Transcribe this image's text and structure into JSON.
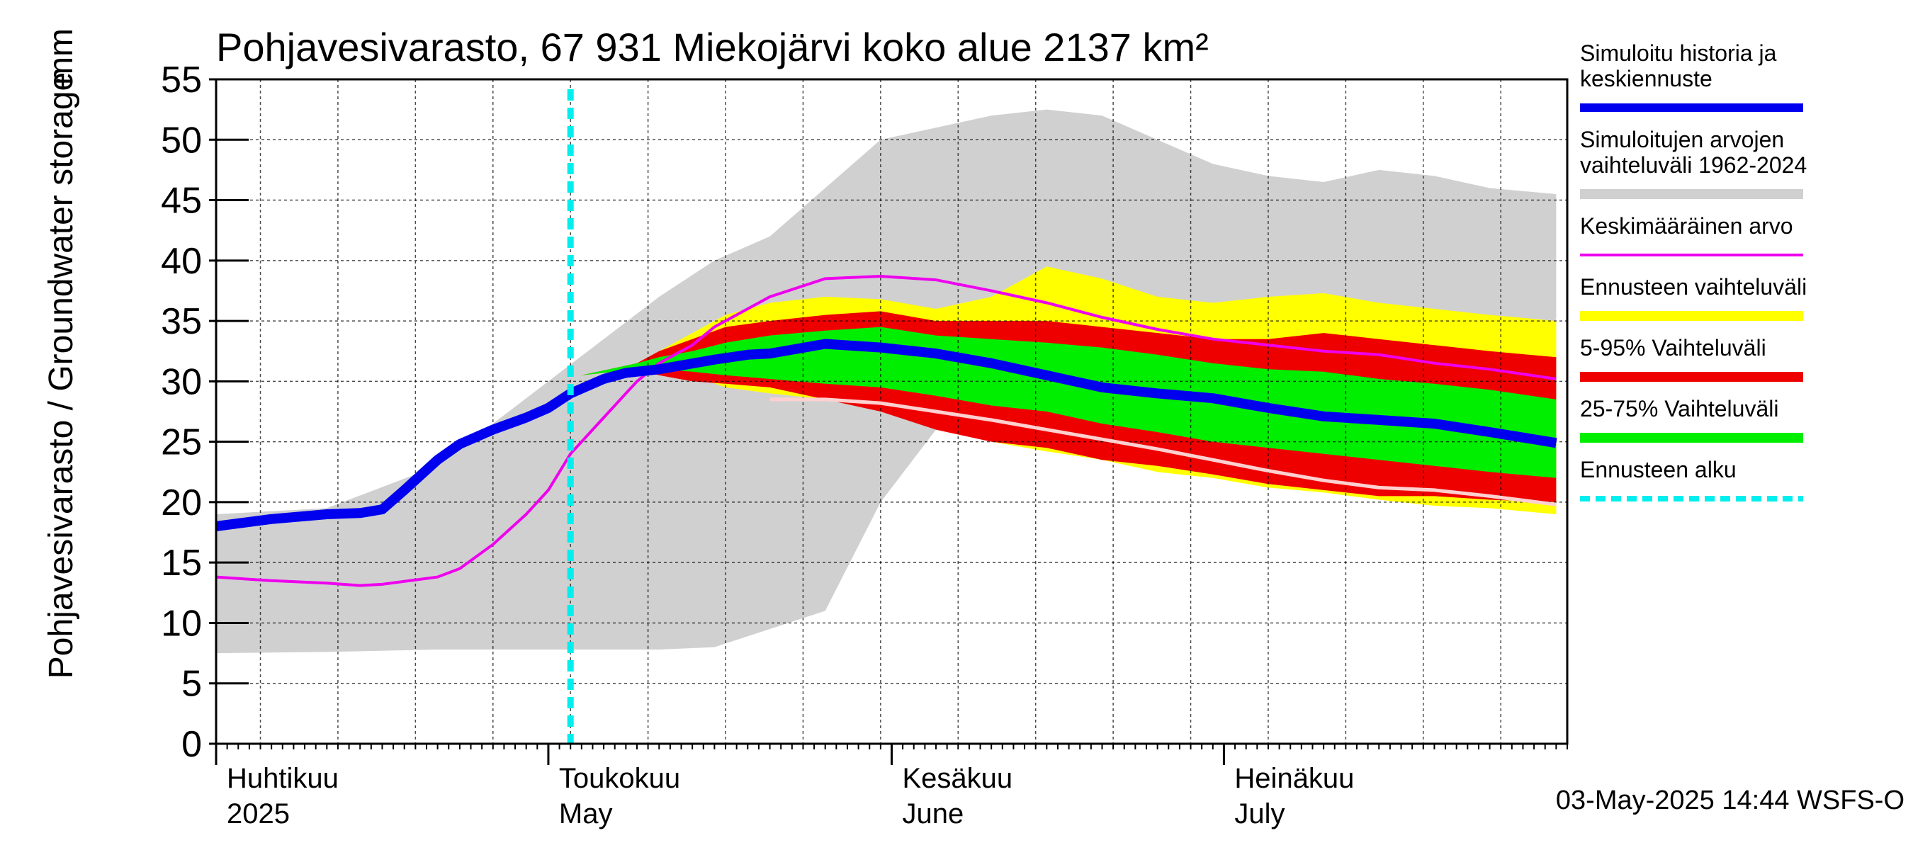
{
  "chart_data": {
    "type": "area",
    "title": "Pohjavesivarasto, 67 931 Miekojärvi koko alue 2137 km²",
    "ylabel": "Pohjavesivarasto / Groundwater storage",
    "yunit": "mm",
    "ylim": [
      0,
      55
    ],
    "yticks": [
      0,
      5,
      10,
      15,
      20,
      25,
      30,
      35,
      40,
      45,
      50,
      55
    ],
    "x_start": "2025-04-01",
    "x_end": "2025-07-31",
    "forecast_start": "2025-05-03",
    "month_labels": [
      {
        "fi": "Huhtikuu",
        "en": "2025",
        "date": "2025-04-01"
      },
      {
        "fi": "Toukokuu",
        "en": "May",
        "date": "2025-05-01"
      },
      {
        "fi": "Kesäkuu",
        "en": "June",
        "date": "2025-06-01"
      },
      {
        "fi": "Heinäkuu",
        "en": "July",
        "date": "2025-07-01"
      }
    ],
    "legend": [
      {
        "key": "sim",
        "label": "Simuloitu historia ja keskiennuste",
        "color": "#0000ee"
      },
      {
        "key": "range",
        "label": "Simuloitujen arvojen vaihteluväli 1962-2024",
        "color": "#d0d0d0"
      },
      {
        "key": "mean",
        "label": "Keskimääräinen arvo",
        "color": "#ee00ee"
      },
      {
        "key": "fc_range",
        "label": "Ennusteen vaihteluväli",
        "color": "#ffff00"
      },
      {
        "key": "p5_95",
        "label": "5-95% Vaihteluväli",
        "color": "#ee0000"
      },
      {
        "key": "p25_75",
        "label": "25-75% Vaihteluväli",
        "color": "#00ee00"
      },
      {
        "key": "fc_start",
        "label": "Ennusteen alku",
        "color": "#00eeee"
      }
    ],
    "footer": "03-May-2025 14:44 WSFS-O",
    "series": {
      "hist_range": {
        "days": [
          0,
          10,
          20,
          30,
          40,
          45,
          50,
          55,
          60,
          65,
          70,
          75,
          80,
          85,
          90,
          95,
          100,
          105,
          110,
          115,
          121
        ],
        "min": [
          7.5,
          7.6,
          7.8,
          7.8,
          7.8,
          8.0,
          9.5,
          11,
          20,
          26,
          28,
          28.5,
          28.5,
          27,
          26,
          24.5,
          23,
          22,
          21,
          20,
          19.5
        ],
        "max": [
          19,
          19.5,
          23,
          30,
          37,
          40,
          42,
          46,
          50,
          51,
          52,
          52.5,
          52,
          50,
          48,
          47,
          46.5,
          47.5,
          47,
          46,
          45.5
        ]
      },
      "sim": {
        "days": [
          0,
          5,
          10,
          13,
          15,
          17,
          20,
          22,
          25,
          28,
          30,
          32,
          35,
          37,
          40,
          45,
          48,
          50,
          55,
          60,
          65,
          70,
          75,
          80,
          85,
          90,
          95,
          100,
          105,
          110,
          115,
          121
        ],
        "values": [
          18,
          18.6,
          19,
          19.1,
          19.4,
          21,
          23.5,
          24.8,
          26,
          27,
          27.8,
          29,
          30.2,
          30.7,
          31,
          31.8,
          32.2,
          32.3,
          33.1,
          32.8,
          32.3,
          31.5,
          30.5,
          29.5,
          29,
          28.6,
          27.8,
          27.1,
          26.8,
          26.5,
          25.8,
          24.9
        ]
      },
      "mean": {
        "days": [
          0,
          5,
          10,
          13,
          15,
          20,
          22,
          25,
          28,
          30,
          32,
          35,
          38,
          40,
          43,
          45,
          48,
          50,
          55,
          60,
          65,
          70,
          75,
          80,
          85,
          90,
          95,
          100,
          105,
          110,
          115,
          121
        ],
        "values": [
          13.8,
          13.5,
          13.3,
          13.1,
          13.2,
          13.8,
          14.5,
          16.5,
          19,
          21,
          24,
          27,
          30,
          31.5,
          33,
          34.5,
          36,
          37,
          38.5,
          38.7,
          38.4,
          37.5,
          36.5,
          35.3,
          34.3,
          33.5,
          33,
          32.5,
          32.2,
          31.5,
          31,
          30.2
        ]
      },
      "fc_range": {
        "days": [
          33,
          38,
          40,
          43,
          46,
          50,
          55,
          60,
          65,
          70,
          75,
          80,
          85,
          90,
          95,
          100,
          105,
          110,
          115,
          121
        ],
        "min": [
          30.5,
          31,
          31,
          30.5,
          29.5,
          29,
          28.5,
          27.7,
          26.5,
          25,
          24.2,
          23.5,
          22.5,
          22,
          21.2,
          20.8,
          20.2,
          19.7,
          19.5,
          19
        ],
        "max": [
          30.5,
          31.5,
          32.5,
          34,
          35.5,
          36.5,
          37,
          36.8,
          36,
          37,
          39.5,
          38.5,
          37,
          36.5,
          37,
          37.3,
          36.5,
          36,
          35.5,
          35
        ]
      },
      "p5_95": {
        "days": [
          33,
          38,
          40,
          43,
          46,
          50,
          55,
          60,
          65,
          70,
          75,
          80,
          85,
          90,
          95,
          100,
          105,
          110,
          115,
          121
        ],
        "min": [
          30.5,
          31,
          30.5,
          30,
          29.8,
          29.5,
          28.5,
          27.5,
          26,
          25,
          24.5,
          23.5,
          23,
          22.3,
          21.5,
          21,
          20.5,
          20.5,
          20.2,
          20
        ],
        "max": [
          30.5,
          31.5,
          32.5,
          33.5,
          34.5,
          35,
          35.5,
          35.8,
          35,
          35,
          35,
          34.5,
          34,
          33.5,
          33.5,
          34,
          33.5,
          33,
          32.5,
          32
        ]
      },
      "p25_75": {
        "days": [
          33,
          38,
          40,
          43,
          46,
          50,
          55,
          60,
          65,
          70,
          75,
          80,
          85,
          90,
          95,
          100,
          105,
          110,
          115,
          121
        ],
        "min": [
          30.5,
          31,
          31,
          30.8,
          30.5,
          30.2,
          29.8,
          29.5,
          28.8,
          28,
          27.5,
          26.5,
          25.8,
          25,
          24.5,
          24,
          23.5,
          23,
          22.5,
          22
        ],
        "max": [
          30.5,
          31.5,
          32,
          32.5,
          33.2,
          33.8,
          34.2,
          34.5,
          33.8,
          33.5,
          33.2,
          32.8,
          32.2,
          31.5,
          31,
          30.8,
          30.2,
          29.8,
          29.3,
          28.5
        ]
      },
      "low_trace": {
        "days": [
          50,
          55,
          60,
          65,
          70,
          75,
          80,
          85,
          90,
          95,
          100,
          105,
          110,
          115,
          121
        ],
        "values": [
          28.5,
          28.5,
          28.2,
          27.5,
          26.8,
          26,
          25.2,
          24.4,
          23.5,
          22.6,
          21.8,
          21.2,
          21,
          20.5,
          19.8
        ]
      }
    }
  }
}
